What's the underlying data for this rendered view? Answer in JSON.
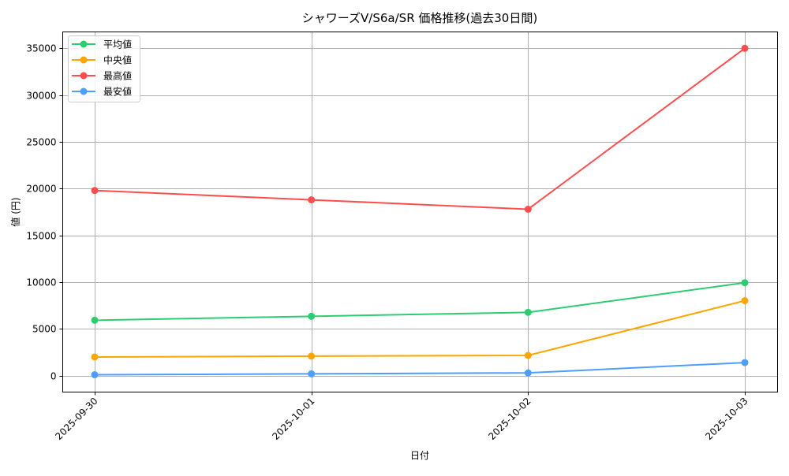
{
  "chart_data": {
    "type": "line",
    "title": "シャワーズV/S6a/SR 価格推移(過去30日間)",
    "xlabel": "日付",
    "ylabel": "値 (円)",
    "categories": [
      "2025-09-30",
      "2025-10-01",
      "2025-10-02",
      "2025-10-03"
    ],
    "series": [
      {
        "name": "平均値",
        "color": "#2ecc71",
        "values": [
          5930,
          6350,
          6770,
          9940
        ]
      },
      {
        "name": "中央値",
        "color": "#ffa500",
        "values": [
          2000,
          2090,
          2170,
          8020
        ]
      },
      {
        "name": "最高値",
        "color": "#ff4d4d",
        "values": [
          19800,
          18800,
          17800,
          35000
        ]
      },
      {
        "name": "最安値",
        "color": "#4d9fff",
        "values": [
          100,
          200,
          300,
          1400
        ]
      }
    ],
    "yticks": [
      0,
      5000,
      10000,
      15000,
      20000,
      25000,
      30000,
      35000
    ],
    "ylim": [
      -1750,
      36750
    ],
    "grid": true,
    "legend_position": "upper left",
    "marker": "circle",
    "xtick_rotation": 45
  }
}
